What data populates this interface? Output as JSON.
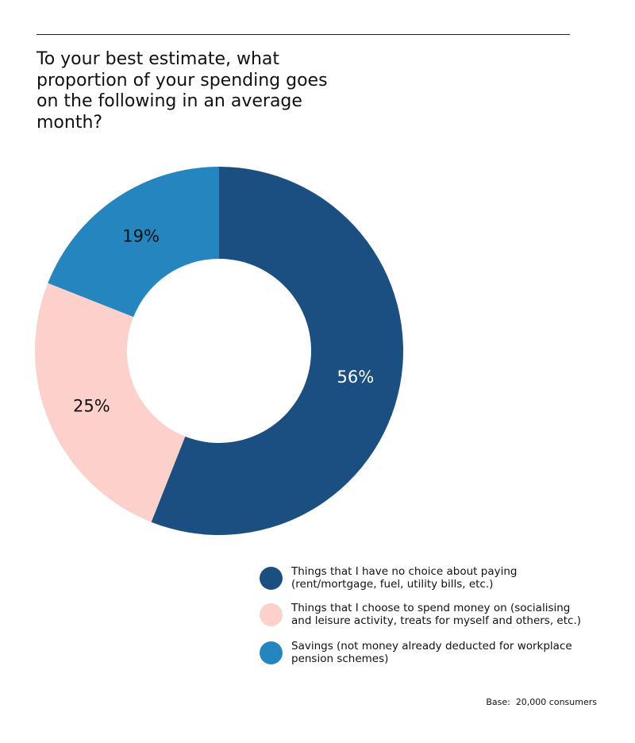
{
  "chart_data": {
    "type": "pie",
    "title": "To your best estimate, what proportion of your spending goes on the following in an average month?",
    "categories": [
      "Things that I have no choice about paying (rent/mortgage, fuel, utility bills, etc.)",
      "Things that I choose to spend money on (socialising and leisure activity, treats for myself and others, etc.)",
      "Savings (not money already deducted for workplace pension schemes)"
    ],
    "values": [
      56,
      25,
      19
    ],
    "value_labels": [
      "56%",
      "25%",
      "19%"
    ],
    "colors": [
      "#1b4f82",
      "#fdd1cb",
      "#2585be"
    ],
    "label_colors": [
      "#ffffff",
      "#111111",
      "#111111"
    ],
    "donut": true,
    "start": "12 o'clock",
    "direction": "clockwise",
    "legend_position": "bottom-right"
  },
  "footer": {
    "base": "Base:  20,000 consumers"
  }
}
